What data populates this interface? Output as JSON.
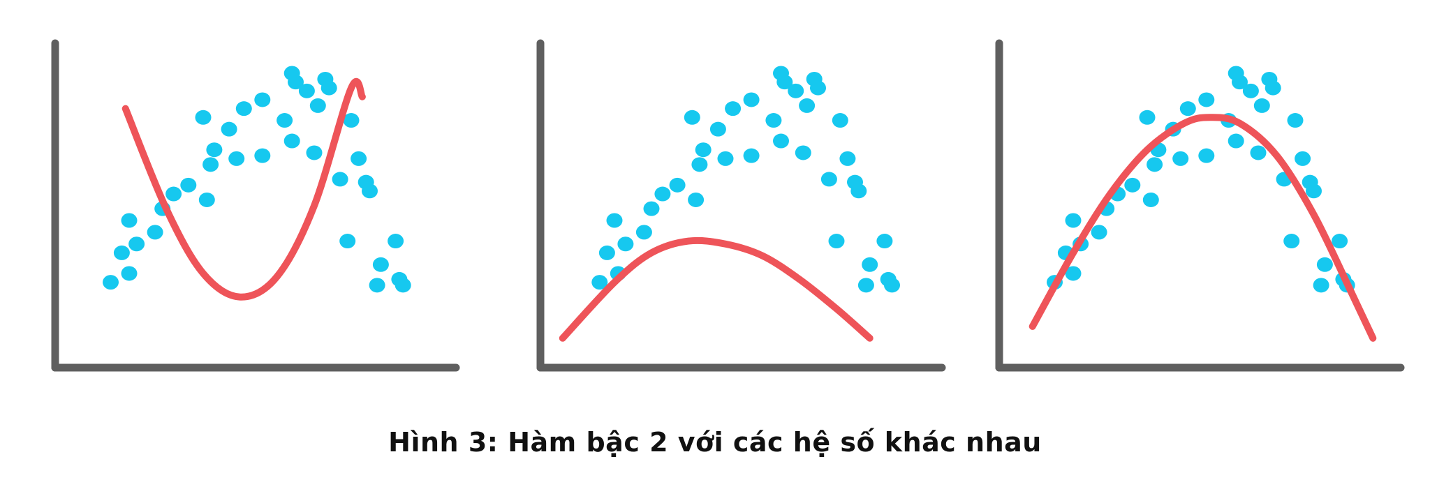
{
  "caption": "Hình 3: Hàm bậc 2 với các hệ số khác nhau",
  "colors": {
    "axis": "#5f5f5f",
    "points": "#16c8ef",
    "curve": "#ee5459",
    "caption": "#111111",
    "background": "#ffffff"
  },
  "chart_data": [
    {
      "type": "scatter",
      "grid": false,
      "xlim": [
        0,
        10
      ],
      "ylim": [
        0,
        10
      ],
      "points": {
        "x": [
          1.5,
          2.0,
          1.8,
          2.2,
          2.0,
          2.7,
          3.2,
          2.9,
          3.6,
          4.1,
          4.3,
          4.2,
          4.0,
          4.9,
          4.7,
          5.1,
          5.6,
          6.2,
          5.6,
          6.5,
          6.4,
          7.1,
          6.8,
          7.0,
          6.4,
          7.3,
          7.4,
          8.0,
          7.7,
          8.4,
          8.2,
          7.9,
          8.5,
          8.7,
          9.2,
          8.8,
          9.3,
          9.4
        ],
        "y": [
          2.9,
          3.2,
          3.9,
          4.2,
          5.0,
          4.6,
          5.9,
          5.4,
          6.2,
          5.7,
          7.4,
          6.9,
          8.5,
          7.1,
          8.1,
          8.8,
          7.2,
          8.4,
          9.1,
          9.7,
          7.7,
          8.9,
          9.4,
          7.3,
          10.0,
          9.8,
          9.5,
          8.4,
          6.4,
          6.3,
          7.1,
          4.3,
          6.0,
          2.8,
          4.3,
          3.5,
          3.0,
          2.8
        ]
      },
      "curve": {
        "x": [
          1.9,
          3.0,
          4.0,
          5.0,
          6.0,
          7.0,
          8.0,
          8.3
        ],
        "y": [
          8.8,
          5.4,
          3.2,
          2.4,
          3.1,
          5.5,
          9.5,
          9.2
        ]
      }
    },
    {
      "type": "scatter",
      "grid": false,
      "xlim": [
        0,
        10
      ],
      "ylim": [
        0,
        10
      ],
      "points": {
        "x": [
          1.6,
          2.1,
          1.8,
          2.3,
          2.0,
          2.8,
          3.3,
          3.0,
          3.7,
          4.2,
          4.4,
          4.3,
          4.1,
          5.0,
          4.8,
          5.2,
          5.7,
          6.3,
          5.7,
          6.6,
          6.5,
          7.2,
          6.9,
          7.1,
          6.5,
          7.4,
          7.5,
          8.1,
          7.8,
          8.5,
          8.3,
          8.0,
          8.6,
          8.8,
          9.3,
          8.9,
          9.4,
          9.5
        ],
        "y": [
          2.9,
          3.2,
          3.9,
          4.2,
          5.0,
          4.6,
          5.9,
          5.4,
          6.2,
          5.7,
          7.4,
          6.9,
          8.5,
          7.1,
          8.1,
          8.8,
          7.2,
          8.4,
          9.1,
          9.7,
          7.7,
          8.9,
          9.4,
          7.3,
          10.0,
          9.8,
          9.5,
          8.4,
          6.4,
          6.3,
          7.1,
          4.3,
          6.0,
          2.8,
          4.3,
          3.5,
          3.0,
          2.8
        ]
      },
      "curve": {
        "x": [
          0.6,
          2.0,
          3.0,
          4.0,
          5.0,
          6.0,
          7.0,
          8.0,
          8.9
        ],
        "y": [
          1.0,
          2.9,
          3.9,
          4.3,
          4.2,
          3.8,
          3.0,
          2.0,
          1.0
        ]
      }
    },
    {
      "type": "scatter",
      "grid": false,
      "xlim": [
        0,
        10
      ],
      "ylim": [
        0,
        10
      ],
      "points": {
        "x": [
          1.5,
          2.0,
          1.8,
          2.2,
          2.0,
          2.7,
          3.2,
          2.9,
          3.6,
          4.1,
          4.3,
          4.2,
          4.0,
          4.9,
          4.7,
          5.1,
          5.6,
          6.2,
          5.6,
          6.5,
          6.4,
          7.1,
          6.8,
          7.0,
          6.4,
          7.3,
          7.4,
          8.0,
          7.7,
          8.4,
          8.2,
          7.9,
          8.5,
          8.7,
          9.2,
          8.8,
          9.3,
          9.4
        ],
        "y": [
          2.9,
          3.2,
          3.9,
          4.2,
          5.0,
          4.6,
          5.9,
          5.4,
          6.2,
          5.7,
          7.4,
          6.9,
          8.5,
          7.1,
          8.1,
          8.8,
          7.2,
          8.4,
          9.1,
          9.7,
          7.7,
          8.9,
          9.4,
          7.3,
          10.0,
          9.8,
          9.5,
          8.4,
          6.4,
          6.3,
          7.1,
          4.3,
          6.0,
          2.8,
          4.3,
          3.5,
          3.0,
          2.8
        ]
      },
      "curve": {
        "x": [
          0.9,
          2.0,
          3.0,
          4.0,
          5.0,
          5.7,
          6.5,
          7.5,
          8.5,
          9.5,
          10.1
        ],
        "y": [
          1.4,
          3.9,
          5.9,
          7.4,
          8.3,
          8.5,
          8.3,
          7.2,
          5.2,
          2.6,
          1.0
        ]
      }
    }
  ]
}
